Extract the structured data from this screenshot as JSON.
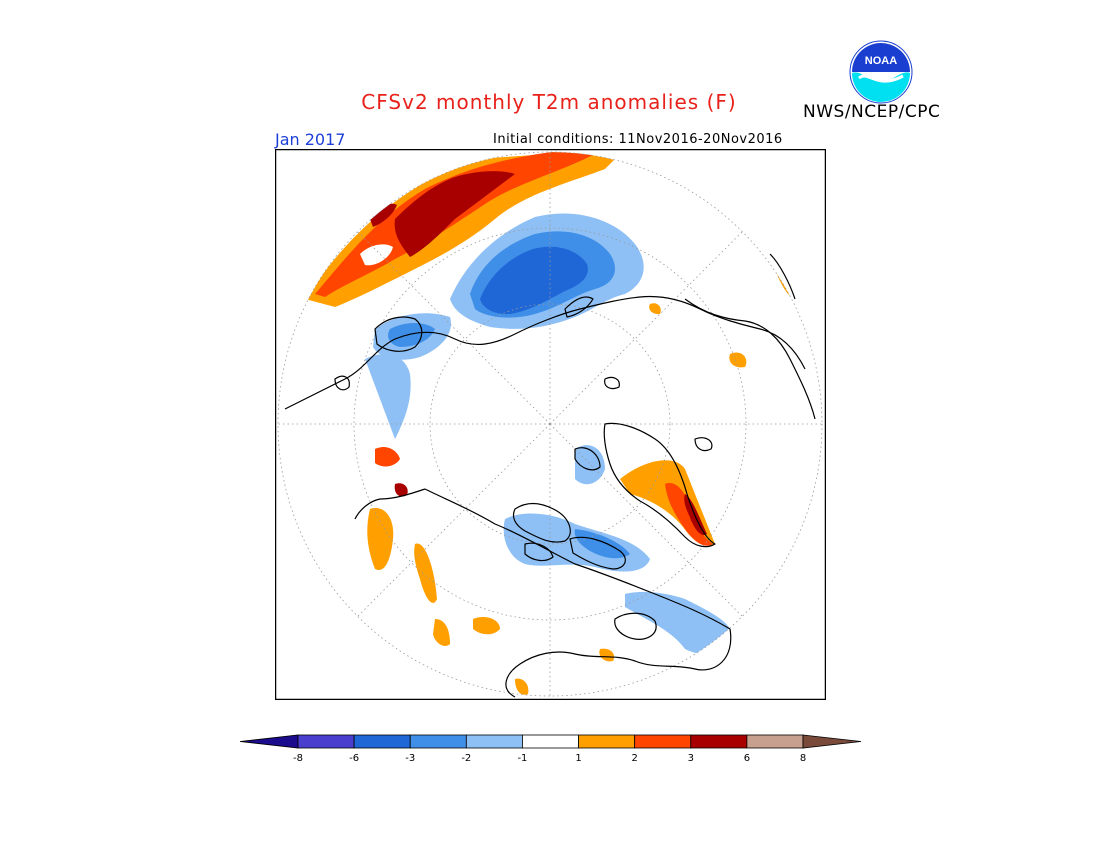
{
  "header": {
    "title": "CFSv2 monthly T2m anomalies (F)",
    "agency": "NWS/NCEP/CPC",
    "period": "Jan 2017",
    "initial_conditions": "Initial conditions: 11Nov2016-20Nov2016",
    "logo_text": "NOAA"
  },
  "map": {
    "projection": "north polar stereographic",
    "variable": "T2m anomaly",
    "units": "F"
  },
  "legend": {
    "ticks": [
      "-8",
      "-6",
      "-3",
      "-2",
      "-1",
      "1",
      "2",
      "3",
      "6",
      "8"
    ],
    "colors": [
      "#1a0c8c",
      "#4a3ecf",
      "#1f66d6",
      "#3f8fe8",
      "#8ec0f5",
      "#ffffff",
      "#ffa000",
      "#ff4500",
      "#a80000",
      "#c8a090",
      "#7a4a3a"
    ],
    "extends": "both"
  },
  "colors": {
    "title": "#e8221b",
    "period": "#1d3fd8",
    "logo_blue": "#1a3fd0",
    "logo_cyan": "#00e0f0"
  }
}
